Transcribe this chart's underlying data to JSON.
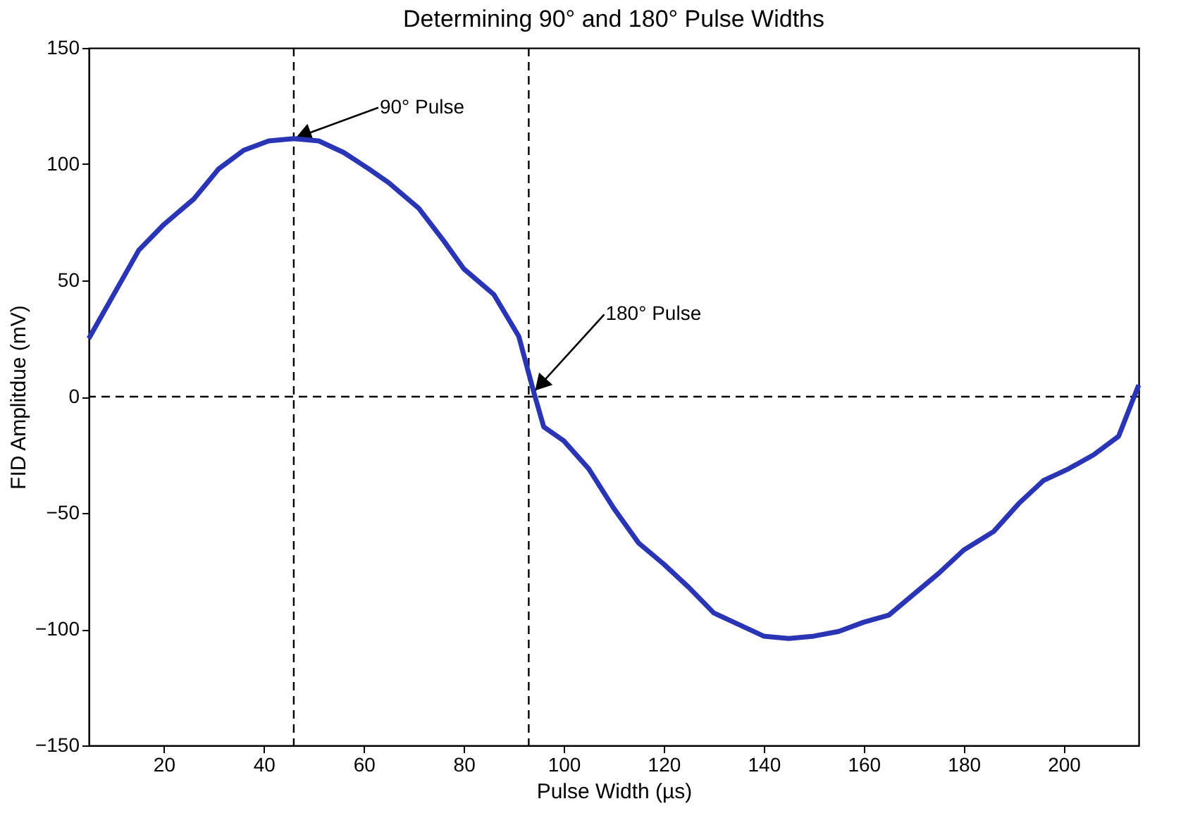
{
  "chart_data": {
    "type": "line",
    "title": "Determining 90° and 180° Pulse Widths",
    "xlabel": "Pulse Width (µs)",
    "ylabel": "FID Amplitdue (mV)",
    "x": [
      5,
      15,
      20,
      26,
      31,
      36,
      41,
      46,
      51,
      56,
      61,
      65,
      71,
      76,
      80,
      86,
      91,
      94,
      96,
      100,
      105,
      110,
      115,
      120,
      125,
      130,
      135,
      140,
      145,
      150,
      155,
      160,
      165,
      170,
      175,
      180,
      186,
      191,
      196,
      201,
      206,
      211,
      215
    ],
    "series": [
      {
        "color": "#2a35b5",
        "values": [
          25,
          63,
          74,
          85,
          98,
          106,
          110,
          111,
          110,
          105,
          98,
          92,
          81,
          67,
          55,
          44,
          26,
          2,
          -13,
          -19,
          -31,
          -48,
          -63,
          -72,
          -82,
          -93,
          -98,
          -103,
          -104,
          -103,
          -101,
          -97,
          -94,
          -85,
          -76,
          -66,
          -58,
          -46,
          -36,
          -31,
          -25,
          -17,
          5
        ]
      }
    ],
    "xlim": [
      5,
      215
    ],
    "ylim": [
      -150,
      150
    ],
    "xticks": [
      20,
      40,
      60,
      80,
      100,
      120,
      140,
      160,
      180,
      200
    ],
    "yticks": [
      -150,
      -100,
      -50,
      0,
      50,
      100,
      150
    ],
    "grid": false,
    "marker": "none",
    "line_style": "solid",
    "ref_lines": [
      {
        "axis": "x",
        "value": 46,
        "color": "#000000",
        "line_style": "dashed"
      },
      {
        "axis": "x",
        "value": 93,
        "color": "#000000",
        "line_style": "dashed"
      },
      {
        "axis": "y",
        "value": 0,
        "color": "#000000",
        "line_style": "dashed"
      }
    ],
    "annotations": [
      {
        "text": "90° Pulse",
        "x": 46,
        "y": 111
      },
      {
        "text": "180° Pulse",
        "x": 94,
        "y": 2
      }
    ]
  }
}
